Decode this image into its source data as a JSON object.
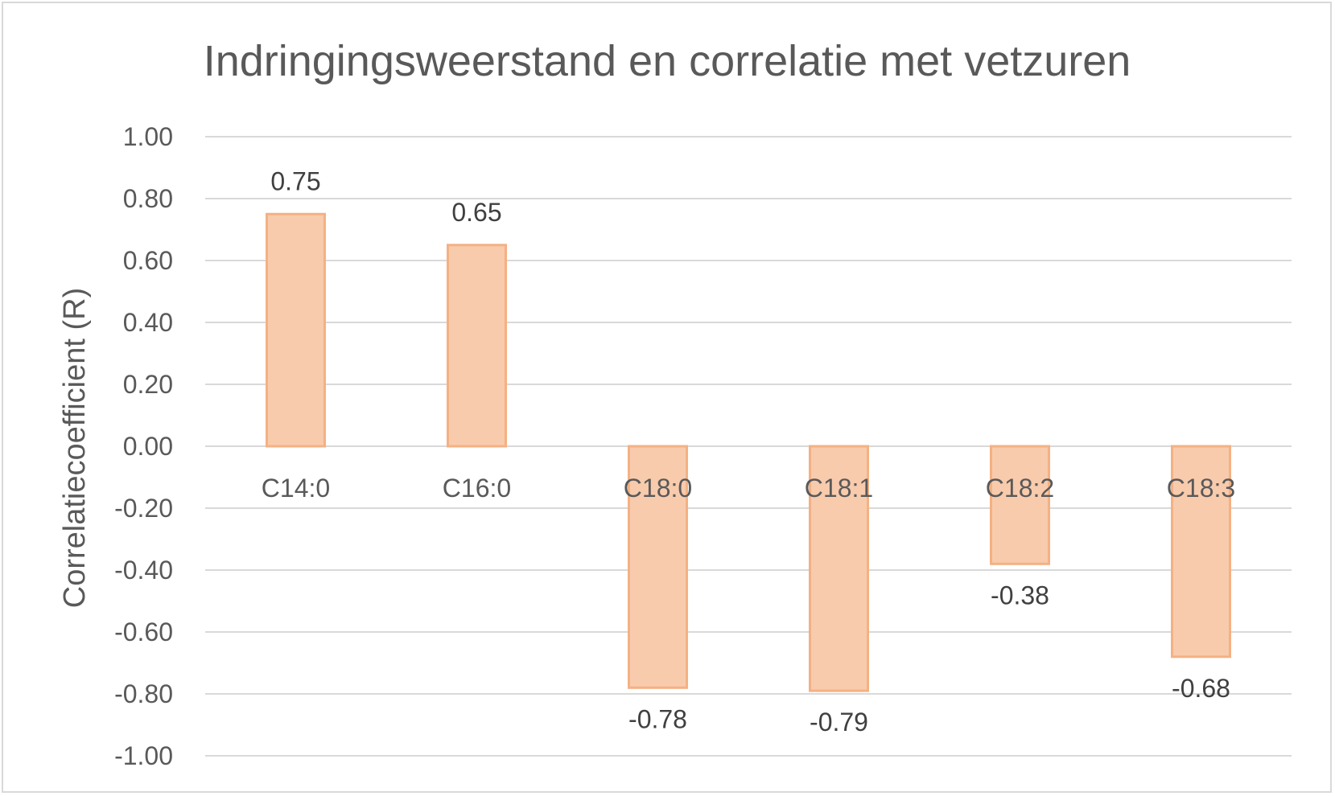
{
  "chart_data": {
    "type": "bar",
    "title": "Indringingsweerstand en correlatie met vetzuren",
    "xlabel": "",
    "ylabel": "Correlatiecoefficient (R)",
    "categories": [
      "C14:0",
      "C16:0",
      "C18:0",
      "C18:1",
      "C18:2",
      "C18:3"
    ],
    "values": [
      0.75,
      0.65,
      -0.78,
      -0.79,
      -0.38,
      -0.68
    ],
    "data_labels": [
      "0.75",
      "0.65",
      "-0.78",
      "-0.79",
      "-0.38",
      "-0.68"
    ],
    "ylim": [
      -1.0,
      1.0
    ],
    "yticks": [
      1.0,
      0.8,
      0.6,
      0.4,
      0.2,
      0.0,
      -0.2,
      -0.4,
      -0.6,
      -0.8,
      -1.0
    ],
    "ytick_labels": [
      "1.00",
      "0.80",
      "0.60",
      "0.40",
      "0.20",
      "0.00",
      "-0.20",
      "-0.40",
      "-0.60",
      "-0.80",
      "-1.00"
    ],
    "grid": true,
    "legend": "none",
    "colors": {
      "bar_fill": "#f8cbad",
      "bar_stroke": "#f4b183",
      "grid": "#d9d9d9",
      "text": "#595959"
    }
  }
}
